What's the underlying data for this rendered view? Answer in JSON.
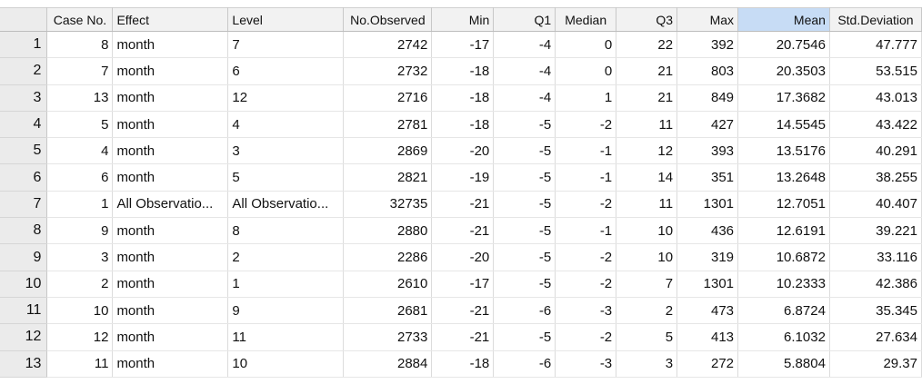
{
  "columns": [
    {
      "key": "row",
      "label": ""
    },
    {
      "key": "case_no",
      "label": "Case No."
    },
    {
      "key": "effect",
      "label": "Effect"
    },
    {
      "key": "level",
      "label": "Level"
    },
    {
      "key": "no_observed",
      "label": "No.Observed"
    },
    {
      "key": "min",
      "label": "Min"
    },
    {
      "key": "q1",
      "label": "Q1"
    },
    {
      "key": "median",
      "label": "Median"
    },
    {
      "key": "q3",
      "label": "Q3"
    },
    {
      "key": "max",
      "label": "Max"
    },
    {
      "key": "mean",
      "label": "Mean"
    },
    {
      "key": "std_deviation",
      "label": "Std.Deviation"
    }
  ],
  "rows": [
    {
      "row": "1",
      "case_no": "8",
      "effect": "month",
      "level": "7",
      "no_observed": "2742",
      "min": "-17",
      "q1": "-4",
      "median": "0",
      "q3": "22",
      "max": "392",
      "mean": "20.7546",
      "std_deviation": "47.777"
    },
    {
      "row": "2",
      "case_no": "7",
      "effect": "month",
      "level": "6",
      "no_observed": "2732",
      "min": "-18",
      "q1": "-4",
      "median": "0",
      "q3": "21",
      "max": "803",
      "mean": "20.3503",
      "std_deviation": "53.515"
    },
    {
      "row": "3",
      "case_no": "13",
      "effect": "month",
      "level": "12",
      "no_observed": "2716",
      "min": "-18",
      "q1": "-4",
      "median": "1",
      "q3": "21",
      "max": "849",
      "mean": "17.3682",
      "std_deviation": "43.013"
    },
    {
      "row": "4",
      "case_no": "5",
      "effect": "month",
      "level": "4",
      "no_observed": "2781",
      "min": "-18",
      "q1": "-5",
      "median": "-2",
      "q3": "11",
      "max": "427",
      "mean": "14.5545",
      "std_deviation": "43.422"
    },
    {
      "row": "5",
      "case_no": "4",
      "effect": "month",
      "level": "3",
      "no_observed": "2869",
      "min": "-20",
      "q1": "-5",
      "median": "-1",
      "q3": "12",
      "max": "393",
      "mean": "13.5176",
      "std_deviation": "40.291"
    },
    {
      "row": "6",
      "case_no": "6",
      "effect": "month",
      "level": "5",
      "no_observed": "2821",
      "min": "-19",
      "q1": "-5",
      "median": "-1",
      "q3": "14",
      "max": "351",
      "mean": "13.2648",
      "std_deviation": "38.255"
    },
    {
      "row": "7",
      "case_no": "1",
      "effect": "All Observatio...",
      "level": "All Observatio...",
      "no_observed": "32735",
      "min": "-21",
      "q1": "-5",
      "median": "-2",
      "q3": "11",
      "max": "1301",
      "mean": "12.7051",
      "std_deviation": "40.407"
    },
    {
      "row": "8",
      "case_no": "9",
      "effect": "month",
      "level": "8",
      "no_observed": "2880",
      "min": "-21",
      "q1": "-5",
      "median": "-1",
      "q3": "10",
      "max": "436",
      "mean": "12.6191",
      "std_deviation": "39.221"
    },
    {
      "row": "9",
      "case_no": "3",
      "effect": "month",
      "level": "2",
      "no_observed": "2286",
      "min": "-20",
      "q1": "-5",
      "median": "-2",
      "q3": "10",
      "max": "319",
      "mean": "10.6872",
      "std_deviation": "33.116"
    },
    {
      "row": "10",
      "case_no": "2",
      "effect": "month",
      "level": "1",
      "no_observed": "2610",
      "min": "-17",
      "q1": "-5",
      "median": "-2",
      "q3": "7",
      "max": "1301",
      "mean": "10.2333",
      "std_deviation": "42.386"
    },
    {
      "row": "11",
      "case_no": "10",
      "effect": "month",
      "level": "9",
      "no_observed": "2681",
      "min": "-21",
      "q1": "-6",
      "median": "-3",
      "q3": "2",
      "max": "473",
      "mean": "6.8724",
      "std_deviation": "35.345"
    },
    {
      "row": "12",
      "case_no": "12",
      "effect": "month",
      "level": "11",
      "no_observed": "2733",
      "min": "-21",
      "q1": "-5",
      "median": "-2",
      "q3": "5",
      "max": "413",
      "mean": "6.1032",
      "std_deviation": "27.634"
    },
    {
      "row": "13",
      "case_no": "11",
      "effect": "month",
      "level": "10",
      "no_observed": "2884",
      "min": "-18",
      "q1": "-6",
      "median": "-3",
      "q3": "3",
      "max": "272",
      "mean": "5.8804",
      "std_deviation": "29.37"
    }
  ],
  "sorted_column": "mean",
  "colors": {
    "header_bg": "#f2f2f2",
    "sorted_header_bg": "#c7dcf5",
    "row_header_bg": "#ebebeb"
  }
}
